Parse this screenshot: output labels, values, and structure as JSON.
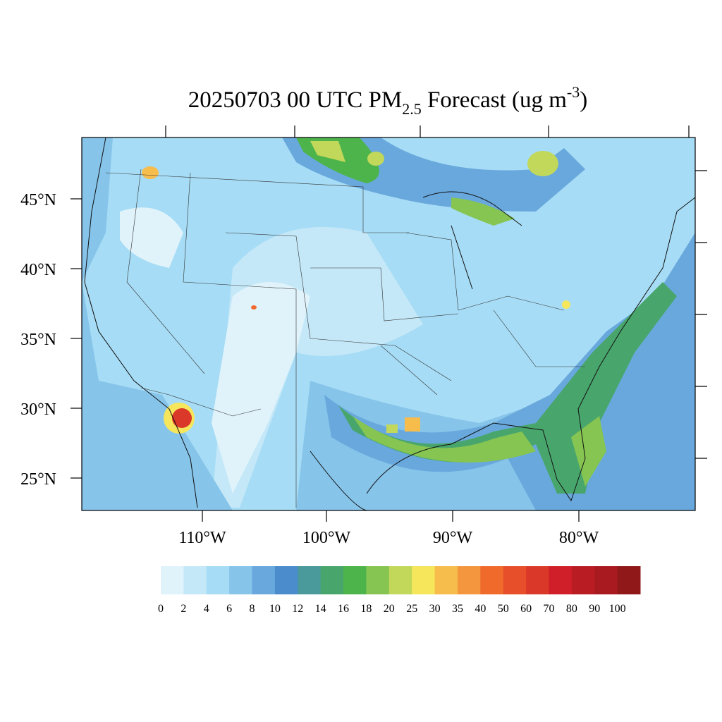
{
  "header": {
    "title_parts": [
      "20250703 00 UTC PM",
      "2.5",
      " Forecast (ug m",
      "-3",
      ")"
    ]
  },
  "map": {
    "lat_labels": [
      "45°N",
      "40°N",
      "35°N",
      "30°N",
      "25°N"
    ],
    "lon_labels": [
      "110°W",
      "100°W",
      "90°W",
      "80°W"
    ]
  },
  "colorbar": {
    "levels": [
      0,
      2,
      4,
      6,
      8,
      10,
      12,
      14,
      16,
      18,
      20,
      25,
      30,
      35,
      40,
      50,
      60,
      70,
      80,
      90,
      100
    ],
    "colors": [
      "#e0f3fb",
      "#c4e8f8",
      "#a6dcf5",
      "#86c4ea",
      "#68a8dc",
      "#4a8ccc",
      "#4a9a9c",
      "#48a66c",
      "#4cb44a",
      "#86c552",
      "#c2d85a",
      "#f6e65c",
      "#f6bc4c",
      "#f4963e",
      "#f06a2c",
      "#e64f2a",
      "#da3828",
      "#d01f28",
      "#ba1c24",
      "#a81a20",
      "#901818"
    ]
  }
}
